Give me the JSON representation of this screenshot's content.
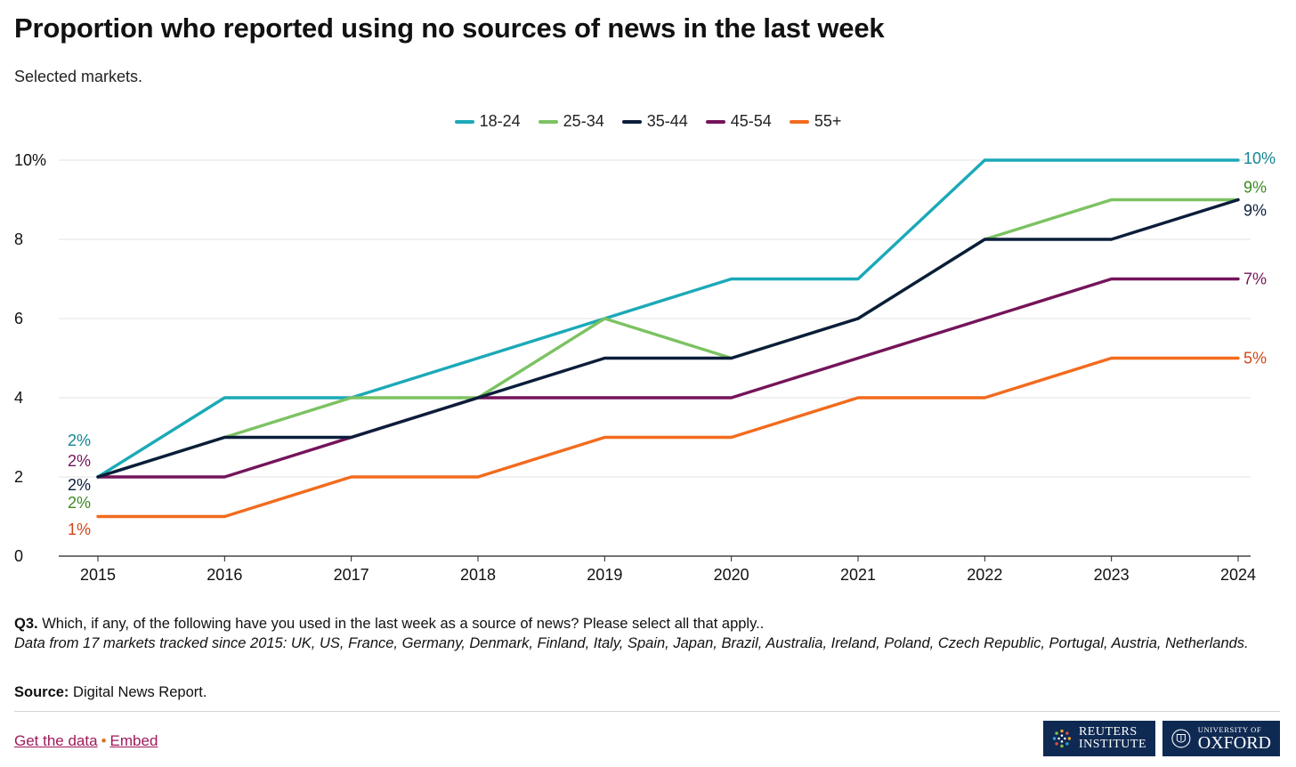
{
  "header": {
    "title": "Proportion who reported using no sources of news in the last week",
    "subtitle": "Selected markets."
  },
  "notes": {
    "question_label": "Q3.",
    "question_text": "Which, if any, of the following have you used in the last week as a source of news? Please select all that apply..",
    "data_note": "Data from 17 markets tracked since 2015: UK, US, France, Germany, Denmark, Finland, Italy, Spain, Japan, Brazil, Australia, Ireland, Poland, Czech Republic, Portugal, Austria, Netherlands.",
    "source_label": "Source:",
    "source_text": "Digital News Report."
  },
  "footer": {
    "get_data_label": "Get the data",
    "separator": "•",
    "embed_label": "Embed",
    "logo_reuters_line1": "REUTERS",
    "logo_reuters_line2": "INSTITUTE",
    "logo_oxford_line1": "UNIVERSITY OF",
    "logo_oxford_line2": "OXFORD"
  },
  "chart_data": {
    "type": "line",
    "x": [
      "2015",
      "2016",
      "2017",
      "2018",
      "2019",
      "2020",
      "2021",
      "2022",
      "2023",
      "2024"
    ],
    "series": [
      {
        "name": "18-24",
        "color": "#1ba9b8",
        "values": [
          2,
          4,
          4,
          5,
          6,
          7,
          7,
          10,
          10,
          10
        ],
        "start_label": "2%",
        "end_label": "10%",
        "label_color": "#138793"
      },
      {
        "name": "25-34",
        "color": "#7cc262",
        "values": [
          2,
          3,
          4,
          4,
          6,
          5,
          6,
          8,
          9,
          9
        ],
        "start_label": "2%",
        "end_label": "9%",
        "label_color": "#3c8a22"
      },
      {
        "name": "35-44",
        "color": "#0b1d3a",
        "values": [
          2,
          3,
          3,
          4,
          5,
          5,
          6,
          8,
          8,
          9
        ],
        "start_label": "2%",
        "end_label": "9%",
        "label_color": "#0b1d3a"
      },
      {
        "name": "45-54",
        "color": "#74145a",
        "values": [
          2,
          2,
          3,
          4,
          4,
          4,
          5,
          6,
          7,
          7
        ],
        "start_label": "2%",
        "end_label": "7%",
        "label_color": "#74145a"
      },
      {
        "name": "55+",
        "color": "#f26b1d",
        "values": [
          1,
          1,
          2,
          2,
          3,
          3,
          4,
          4,
          5,
          5
        ],
        "start_label": "1%",
        "end_label": "5%",
        "label_color": "#d1461a"
      }
    ],
    "y_ticks": [
      "0",
      "2",
      "4",
      "6",
      "8",
      "10%"
    ],
    "ylim": [
      0,
      10
    ],
    "grid": true,
    "legend_placement": "top-center"
  }
}
